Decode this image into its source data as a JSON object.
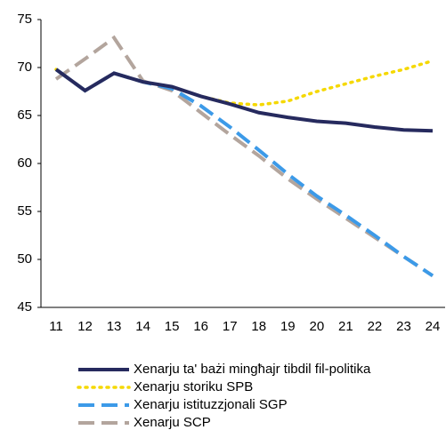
{
  "chart_data": {
    "type": "line",
    "categories": [
      "11",
      "12",
      "13",
      "14",
      "15",
      "16",
      "17",
      "18",
      "19",
      "20",
      "21",
      "22",
      "23",
      "24"
    ],
    "series": [
      {
        "name": "Xenarju ta' bażi mingħajr tibdil fil-politika",
        "color": "#262a5e",
        "style": "solid",
        "values": [
          69.8,
          67.6,
          69.4,
          68.5,
          68.0,
          67.0,
          66.2,
          65.3,
          64.8,
          64.4,
          64.2,
          63.8,
          63.5,
          63.4
        ]
      },
      {
        "name": "Xenarju storiku SPB",
        "color": "#f5d800",
        "style": "dotted",
        "values": [
          69.8,
          67.6,
          69.4,
          68.5,
          68.0,
          67.0,
          66.3,
          66.1,
          66.5,
          67.5,
          68.3,
          69.1,
          69.8,
          70.7
        ]
      },
      {
        "name": "Xenarju istituzzjonali SGP",
        "color": "#3c9ae8",
        "style": "dashed",
        "values": [
          69.8,
          67.6,
          69.4,
          68.5,
          67.8,
          66.0,
          63.8,
          61.4,
          58.9,
          56.6,
          54.6,
          52.5,
          50.3,
          48.3
        ]
      },
      {
        "name": "Xenarju SCP",
        "color": "#b3a59d",
        "style": "dashed",
        "values": [
          68.8,
          70.9,
          73.1,
          68.6,
          67.6,
          65.3,
          63.0,
          60.8,
          58.4,
          56.3,
          54.3,
          52.3,
          50.3,
          48.3
        ]
      }
    ],
    "ylim": [
      45,
      75
    ],
    "yticks": [
      45,
      50,
      55,
      60,
      65,
      70,
      75
    ],
    "grid": false
  }
}
